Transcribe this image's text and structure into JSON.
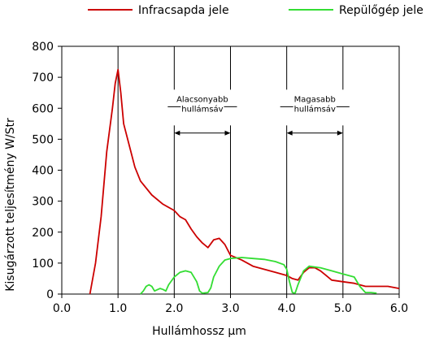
{
  "chart_data": {
    "type": "line",
    "xlabel": "Hullámhossz µm",
    "ylabel": "Kisugárzott teljesítmény W/Str",
    "xlim": [
      0,
      6
    ],
    "ylim": [
      0,
      800
    ],
    "x_ticks": [
      "0.0",
      "1.0",
      "2.0",
      "3.0",
      "4.0",
      "5.0",
      "6.0"
    ],
    "y_ticks": [
      "0",
      "100",
      "200",
      "300",
      "400",
      "500",
      "600",
      "700",
      "800"
    ],
    "grid": "vertical",
    "legend_position": "top",
    "series": [
      {
        "name": "Infracsapda jele",
        "color": "#cc0000",
        "points": [
          [
            0.5,
            0
          ],
          [
            0.6,
            100
          ],
          [
            0.7,
            250
          ],
          [
            0.8,
            460
          ],
          [
            0.9,
            600
          ],
          [
            0.95,
            680
          ],
          [
            1.0,
            725
          ],
          [
            1.05,
            650
          ],
          [
            1.1,
            550
          ],
          [
            1.2,
            480
          ],
          [
            1.3,
            410
          ],
          [
            1.4,
            365
          ],
          [
            1.6,
            320
          ],
          [
            1.8,
            290
          ],
          [
            2.0,
            270
          ],
          [
            2.1,
            250
          ],
          [
            2.2,
            240
          ],
          [
            2.3,
            210
          ],
          [
            2.4,
            185
          ],
          [
            2.5,
            165
          ],
          [
            2.6,
            150
          ],
          [
            2.7,
            175
          ],
          [
            2.8,
            180
          ],
          [
            2.9,
            160
          ],
          [
            3.0,
            125
          ],
          [
            3.2,
            110
          ],
          [
            3.4,
            90
          ],
          [
            3.6,
            80
          ],
          [
            3.8,
            70
          ],
          [
            4.0,
            60
          ],
          [
            4.1,
            50
          ],
          [
            4.2,
            45
          ],
          [
            4.3,
            70
          ],
          [
            4.4,
            85
          ],
          [
            4.5,
            85
          ],
          [
            4.6,
            75
          ],
          [
            4.7,
            60
          ],
          [
            4.8,
            45
          ],
          [
            5.0,
            40
          ],
          [
            5.2,
            35
          ],
          [
            5.4,
            25
          ],
          [
            5.6,
            25
          ],
          [
            5.8,
            25
          ],
          [
            6.0,
            18
          ]
        ]
      },
      {
        "name": "Repülőgép jele",
        "color": "#33dd33",
        "points": [
          [
            1.4,
            0
          ],
          [
            1.45,
            10
          ],
          [
            1.5,
            25
          ],
          [
            1.55,
            30
          ],
          [
            1.6,
            25
          ],
          [
            1.65,
            10
          ],
          [
            1.75,
            18
          ],
          [
            1.8,
            15
          ],
          [
            1.85,
            10
          ],
          [
            1.9,
            30
          ],
          [
            2.0,
            55
          ],
          [
            2.1,
            70
          ],
          [
            2.2,
            75
          ],
          [
            2.3,
            70
          ],
          [
            2.4,
            40
          ],
          [
            2.45,
            10
          ],
          [
            2.5,
            3
          ],
          [
            2.6,
            5
          ],
          [
            2.65,
            20
          ],
          [
            2.7,
            55
          ],
          [
            2.8,
            90
          ],
          [
            2.9,
            110
          ],
          [
            3.0,
            115
          ],
          [
            3.2,
            118
          ],
          [
            3.4,
            115
          ],
          [
            3.6,
            112
          ],
          [
            3.8,
            105
          ],
          [
            3.95,
            95
          ],
          [
            4.0,
            80
          ],
          [
            4.05,
            40
          ],
          [
            4.1,
            5
          ],
          [
            4.15,
            3
          ],
          [
            4.2,
            30
          ],
          [
            4.3,
            75
          ],
          [
            4.4,
            90
          ],
          [
            4.6,
            85
          ],
          [
            4.8,
            75
          ],
          [
            5.0,
            65
          ],
          [
            5.1,
            60
          ],
          [
            5.2,
            55
          ],
          [
            5.3,
            25
          ],
          [
            5.4,
            5
          ],
          [
            5.5,
            5
          ],
          [
            5.6,
            3
          ]
        ]
      }
    ],
    "annotations": [
      {
        "text_lines": [
          "Alacsonyabb",
          "hullámsáv"
        ],
        "x_range": [
          2.0,
          3.0
        ]
      },
      {
        "text_lines": [
          "Magasabb",
          "hullámsáv"
        ],
        "x_range": [
          4.0,
          5.0
        ]
      }
    ]
  }
}
